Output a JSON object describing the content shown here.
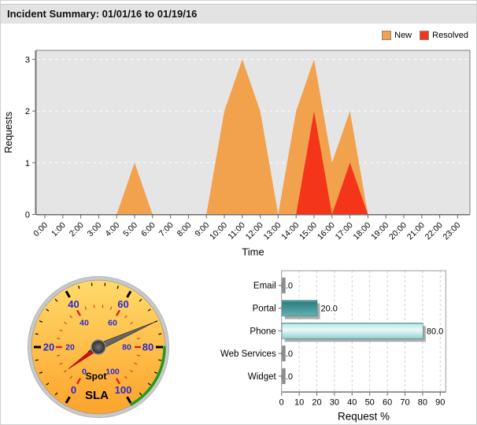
{
  "title": "Incident Summary: 01/01/16 to 01/19/16",
  "legend": [
    {
      "label": "New",
      "color": "#F2A24D"
    },
    {
      "label": "Resolved",
      "color": "#F43519"
    }
  ],
  "chart_data": [
    {
      "type": "area",
      "name": "incidents-by-hour",
      "x": [
        "0:00",
        "1:00",
        "2:00",
        "3:00",
        "4:00",
        "5:00",
        "6:00",
        "7:00",
        "8:00",
        "9:00",
        "10:00",
        "11:00",
        "12:00",
        "13:00",
        "14:00",
        "15:00",
        "16:00",
        "17:00",
        "18:00",
        "19:00",
        "20:00",
        "21:00",
        "22:00",
        "23:00"
      ],
      "series": [
        {
          "name": "New",
          "color": "#F2A24D",
          "values": [
            0,
            0,
            0,
            0,
            0,
            1,
            0,
            0,
            0,
            0,
            2,
            3,
            2,
            0,
            2,
            3,
            1,
            2,
            0,
            0,
            0,
            0,
            0,
            0
          ]
        },
        {
          "name": "Resolved",
          "color": "#F43519",
          "values": [
            0,
            0,
            0,
            0,
            0,
            0,
            0,
            0,
            0,
            0,
            0,
            0,
            0,
            0,
            0,
            2,
            0,
            1,
            0,
            0,
            0,
            0,
            0,
            0
          ]
        }
      ],
      "xlabel": "Time",
      "ylabel": "Requests",
      "ylim": [
        0,
        3
      ],
      "yticks": [
        0,
        1,
        2,
        3
      ],
      "grid": "horizontal-dashed",
      "plot_bg": "#e5e5e5",
      "grid_color": "#ffffff",
      "legend_position": "top-right"
    },
    {
      "type": "gauge",
      "name": "sla-dial",
      "bottom_label": "SLA",
      "inner_label": "Spot",
      "outer_scale": {
        "min": 0,
        "max": 100,
        "major_ticks": [
          0,
          20,
          40,
          60,
          80,
          100
        ],
        "minor_step": 4
      },
      "inner_scale": {
        "min": 0,
        "max": 100,
        "major_ticks": [
          0,
          20,
          40,
          60,
          80,
          100
        ],
        "minor_step": 4
      },
      "main_pointer_value": 72,
      "spot_pointer_value": 8,
      "green_range": [
        80,
        100
      ],
      "colors": {
        "dial_top": "#FFDA69",
        "dial_bottom": "#FDA32B",
        "ring": "#c9c9c9",
        "outer_tick": "#000000",
        "inner_tick": "#e02020",
        "scale_label": "#2a2acf",
        "main_needle": "#4a4a4a",
        "spot_needle": "#d01010",
        "range_arc": "#1e9c1e",
        "text": "#000000"
      }
    },
    {
      "type": "bar",
      "name": "request-mode-percent",
      "orientation": "horizontal",
      "categories": [
        "Email",
        "Portal",
        "Phone",
        "Web Services",
        "Widget"
      ],
      "values": [
        0.0,
        20.0,
        80.0,
        0.0,
        0.0
      ],
      "value_labels": [
        "0.0",
        "20.0",
        "80.0",
        "0.0",
        "0.0"
      ],
      "xlabel": "Request %",
      "xlim": [
        0,
        90
      ],
      "xticks": [
        0,
        10,
        20,
        30,
        40,
        50,
        60,
        70,
        80,
        90
      ],
      "grid": "vertical-dashed",
      "grid_color": "#bfd4e6",
      "bar_palette": {
        "portal_dark": "#2e7f7f",
        "phone_light": "#eafafa",
        "zero_stub": "#8c8c8c",
        "shadow": "#ababab"
      }
    }
  ]
}
